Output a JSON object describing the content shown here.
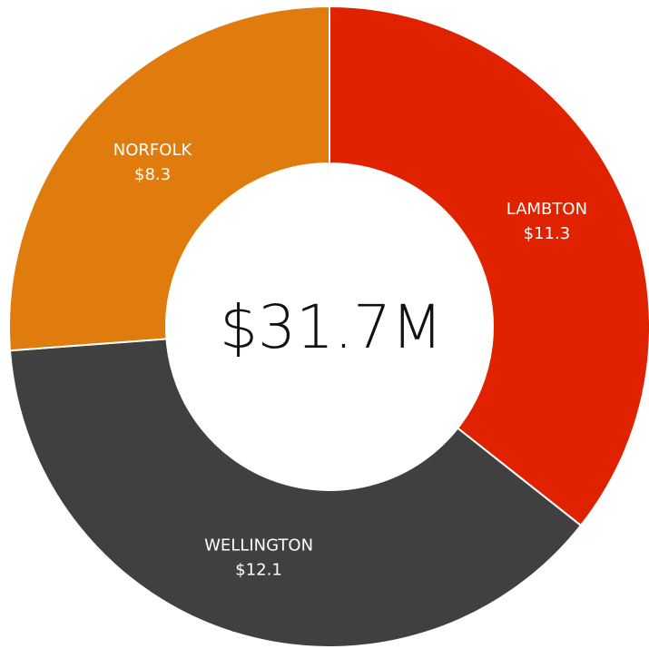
{
  "chart_data": {
    "type": "donut",
    "categories": [
      "LAMBTON",
      "WELLINGTON",
      "NORFOLK"
    ],
    "values": [
      11.3,
      12.1,
      8.3
    ],
    "value_labels": [
      "$11.3",
      "$12.1",
      "$8.3"
    ],
    "colors": [
      "#e02200",
      "#404040",
      "#e07c0e"
    ],
    "center_label": "$31.7M"
  }
}
